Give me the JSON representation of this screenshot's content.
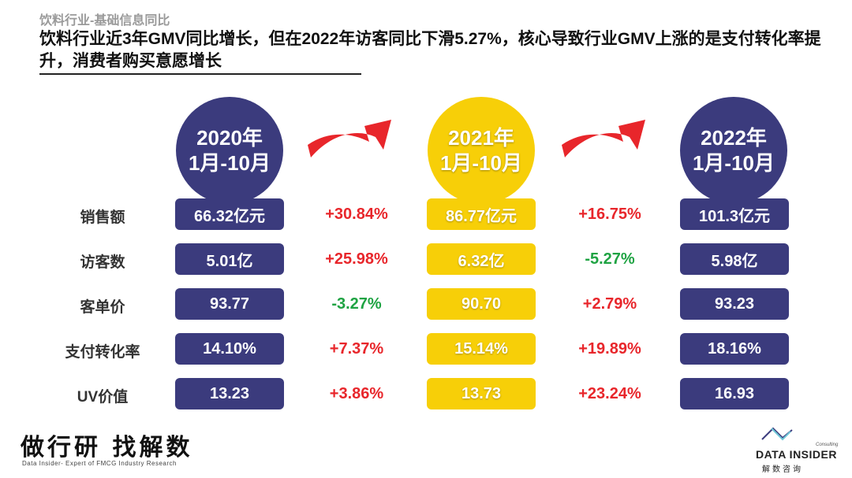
{
  "header": {
    "subtitle": "饮料行业-基础信息同比",
    "headline": "饮料行业近3年GMV同比增长，但在2022年访客同比下滑5.27%，核心导致行业GMV上涨的是支付转化率提升，消费者购买意愿增长"
  },
  "periods": [
    {
      "year": "2020年",
      "range": "1月-10月",
      "color": "#3b3b7d"
    },
    {
      "year": "2021年",
      "range": "1月-10月",
      "color": "#f7cf08"
    },
    {
      "year": "2022年",
      "range": "1月-10月",
      "color": "#3b3b7d"
    }
  ],
  "metrics": [
    {
      "label": "销售额",
      "v2020": "66.32亿元",
      "chg2021": "+30.84%",
      "v2021": "86.77亿元",
      "chg2022": "+16.75%",
      "v2022": "101.3亿元"
    },
    {
      "label": "访客数",
      "v2020": "5.01亿",
      "chg2021": "+25.98%",
      "v2021": "6.32亿",
      "chg2022": "-5.27%",
      "v2022": "5.98亿"
    },
    {
      "label": "客单价",
      "v2020": "93.77",
      "chg2021": "-3.27%",
      "v2021": "90.70",
      "chg2022": "+2.79%",
      "v2022": "93.23"
    },
    {
      "label": "支付转化率",
      "v2020": "14.10%",
      "chg2021": "+7.37%",
      "v2021": "15.14%",
      "chg2022": "+19.89%",
      "v2022": "18.16%"
    },
    {
      "label": "UV价值",
      "v2020": "13.23",
      "chg2021": "+3.86%",
      "v2021": "13.73",
      "chg2022": "+23.24%",
      "v2022": "16.93"
    }
  ],
  "colors": {
    "navy": "#3b3b7d",
    "yellow": "#f7cf08",
    "increase": "#e8262b",
    "decrease": "#1fa343",
    "arrow": "#e8262b"
  },
  "footer": {
    "slogan": "做行研 找解数",
    "slogan_sub": "Data Insider- Expert of FMCG Industry Research",
    "brand_name": "DATA INSIDER",
    "brand_cn": "解数咨询",
    "brand_consulting": "Consulting"
  }
}
